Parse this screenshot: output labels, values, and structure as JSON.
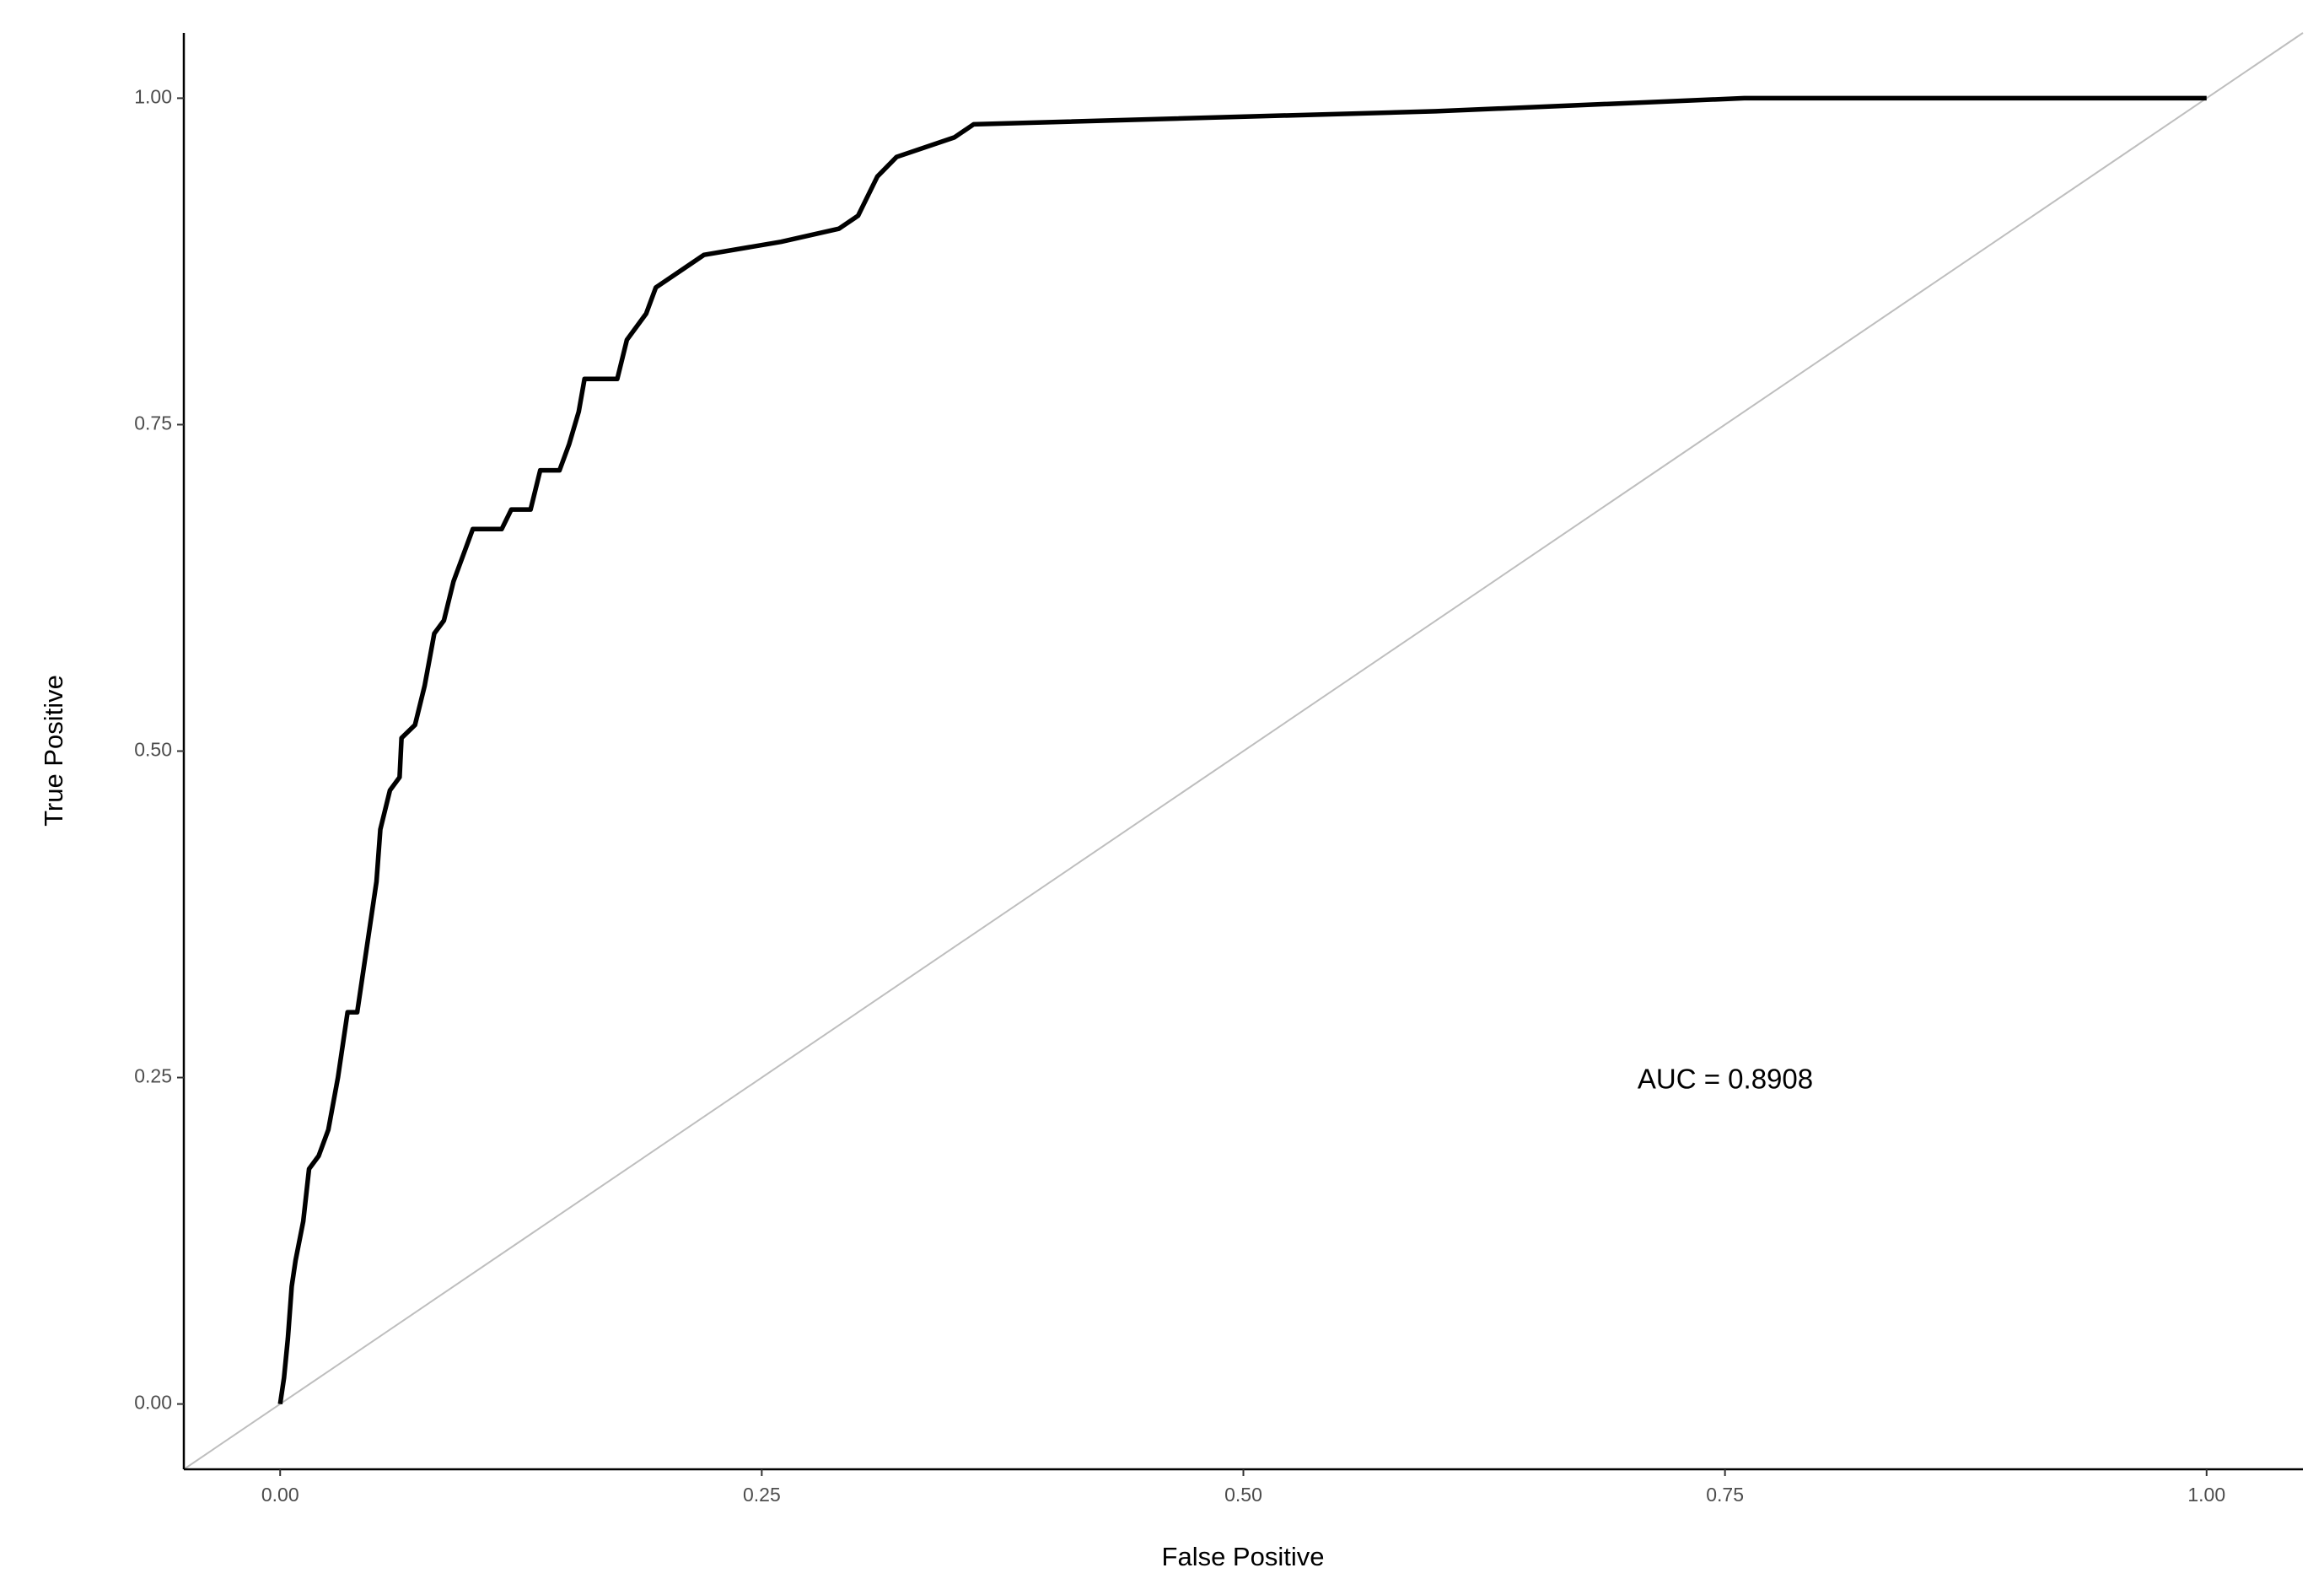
{
  "chart_data": {
    "type": "line",
    "x_label": "False Positive",
    "y_label": "True Positive",
    "annotation": "AUC = 0.8908",
    "x": [
      0,
      0.002,
      0.004,
      0.006,
      0.008,
      0.012,
      0.015,
      0.02,
      0.025,
      0.03,
      0.035,
      0.04,
      0.045,
      0.05,
      0.052,
      0.057,
      0.062,
      0.063,
      0.07,
      0.075,
      0.08,
      0.085,
      0.09,
      0.095,
      0.1,
      0.115,
      0.12,
      0.13,
      0.135,
      0.145,
      0.15,
      0.155,
      0.158,
      0.175,
      0.18,
      0.19,
      0.195,
      0.21,
      0.22,
      0.26,
      0.29,
      0.3,
      0.31,
      0.32,
      0.35,
      0.36,
      0.6,
      0.76,
      1.0
    ],
    "values": [
      0,
      0.02,
      0.05,
      0.09,
      0.11,
      0.14,
      0.18,
      0.19,
      0.21,
      0.25,
      0.3,
      0.3,
      0.35,
      0.4,
      0.44,
      0.47,
      0.48,
      0.51,
      0.52,
      0.55,
      0.59,
      0.6,
      0.63,
      0.65,
      0.67,
      0.67,
      0.685,
      0.685,
      0.715,
      0.715,
      0.735,
      0.76,
      0.785,
      0.785,
      0.815,
      0.835,
      0.855,
      0.87,
      0.88,
      0.89,
      0.9,
      0.91,
      0.94,
      0.955,
      0.97,
      0.98,
      0.99,
      1.0,
      1.0
    ],
    "color": "#000000",
    "diagonal": true,
    "diagonal_color": "#bebebe",
    "xlim": [
      -0.05,
      1.05
    ],
    "ylim": [
      -0.05,
      1.05
    ],
    "xticks": [
      {
        "value": 0,
        "label": "0.00"
      },
      0.25,
      {
        "value": 0.5,
        "label": "0.50"
      },
      0.75,
      {
        "value": 1,
        "label": "1.00"
      }
    ],
    "yticks": [
      {
        "value": 0,
        "label": "0.00"
      },
      0.25,
      {
        "value": 0.5,
        "label": "0.50"
      },
      0.75,
      {
        "value": 1,
        "label": "1.00"
      }
    ],
    "grid": false
  }
}
